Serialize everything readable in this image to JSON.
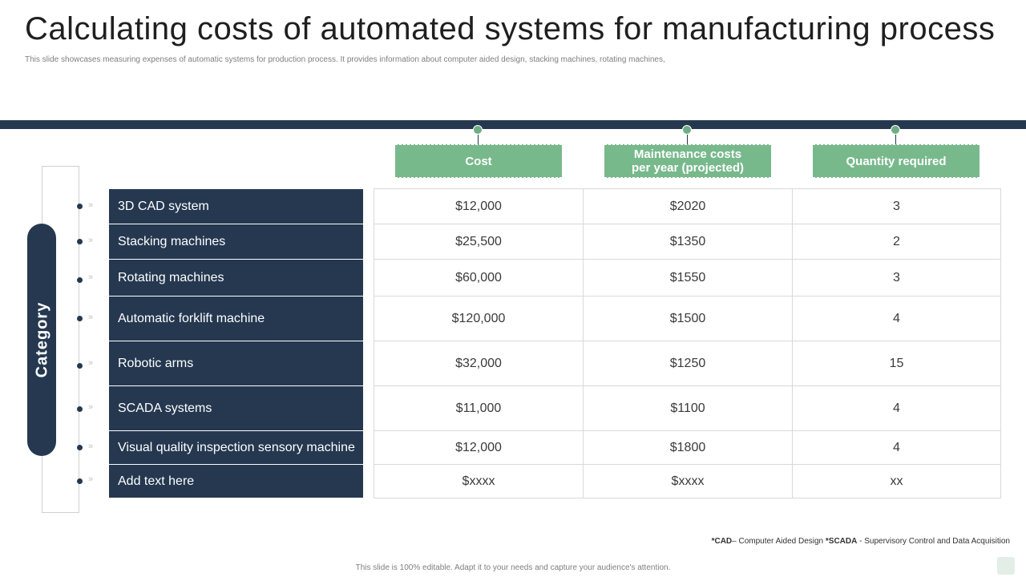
{
  "title": "Calculating costs of automated systems for manufacturing process",
  "subtitle": "This slide showcases measuring expenses of automatic systems for production process. It provides information about computer aided design, stacking machines, rotating machines,",
  "category_label": "Category",
  "columns": [
    "Cost",
    "Maintenance costs per year (projected)",
    "Quantity required"
  ],
  "rows": [
    {
      "category": "3D CAD system",
      "cost": "$12,000",
      "maintenance": "$2020",
      "quantity": "3"
    },
    {
      "category": "Stacking machines",
      "cost": "$25,500",
      "maintenance": "$1350",
      "quantity": "2"
    },
    {
      "category": "Rotating machines",
      "cost": "$60,000",
      "maintenance": "$1550",
      "quantity": "3"
    },
    {
      "category": "Automatic forklift machine",
      "cost": "$120,000",
      "maintenance": "$1500",
      "quantity": "4"
    },
    {
      "category": "Robotic arms",
      "cost": "$32,000",
      "maintenance": "$1250",
      "quantity": "15"
    },
    {
      "category": "SCADA systems",
      "cost": "$11,000",
      "maintenance": "$1100",
      "quantity": "4"
    },
    {
      "category": "Visual quality inspection sensory machine",
      "cost": "$12,000",
      "maintenance": "$1800",
      "quantity": "4"
    },
    {
      "category": "Add text here",
      "cost": "$xxxx",
      "maintenance": "$xxxx",
      "quantity": "xx"
    }
  ],
  "footnote": {
    "cad_abbr": "*CAD",
    "cad_text": "– Computer Aided Design",
    "scada_abbr": "*SCADA",
    "scada_text": " - Supervisory Control and Data Acquisition"
  },
  "footer": "This slide is 100% editable. Adapt it to your needs and capture your audience's attention.",
  "colors": {
    "navy": "#253850",
    "green": "#78b98c",
    "grid": "#d9d9d9"
  }
}
